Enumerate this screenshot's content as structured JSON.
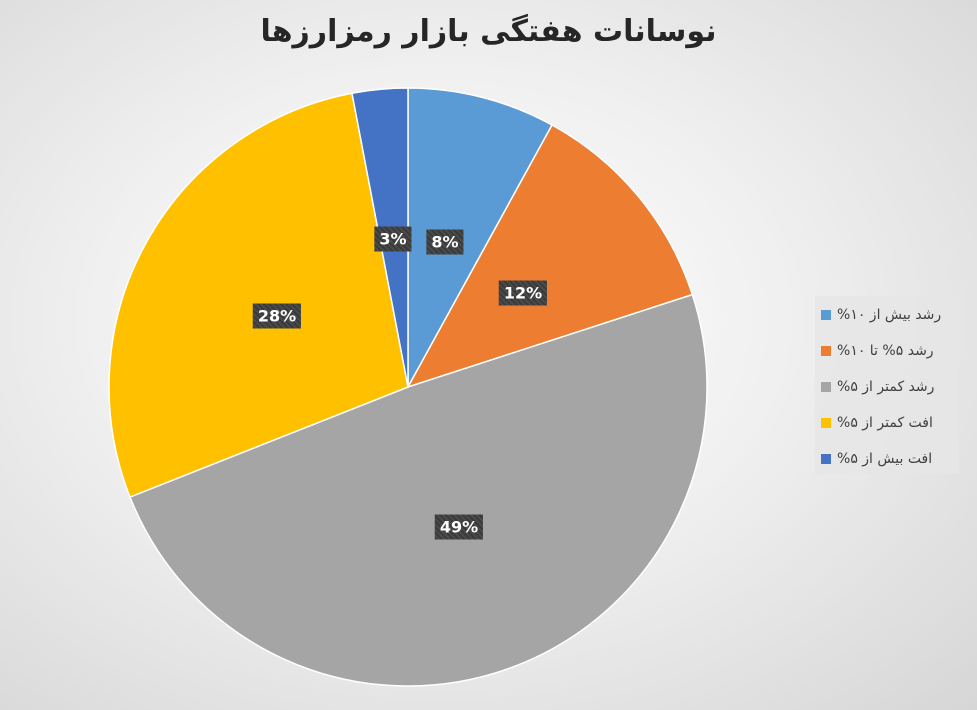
{
  "chart_data": {
    "type": "pie",
    "title": "نوسانات هفتگی بازار رمزارزها",
    "start_angle": "12 o'clock, clockwise",
    "legend_position": "right",
    "slices": [
      {
        "name": "رشد بیش از ۱۰%",
        "value": 8,
        "label": "8%",
        "color": "#5B9BD5"
      },
      {
        "name": "رشد ۵% تا ۱۰%",
        "value": 12,
        "label": "12%",
        "color": "#ED7D31"
      },
      {
        "name": "رشد کمتر از ۵%",
        "value": 49,
        "label": "49%",
        "color": "#A5A5A5"
      },
      {
        "name": "افت کمتر از ۵%",
        "value": 28,
        "label": "28%",
        "color": "#FFC000"
      },
      {
        "name": "افت بیش از ۵%",
        "value": 3,
        "label": "3%",
        "color": "#4472C4"
      }
    ]
  }
}
